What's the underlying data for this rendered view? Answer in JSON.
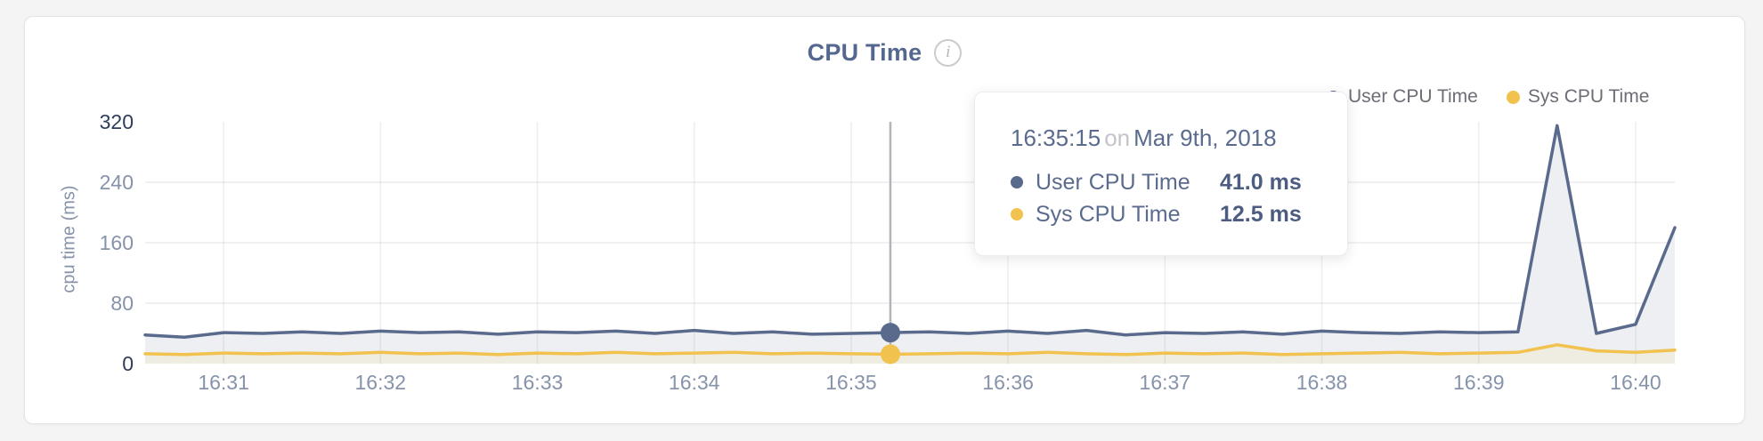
{
  "header": {
    "title": "CPU Time",
    "info_icon": "i"
  },
  "legend": {
    "items": [
      {
        "label": "User CPU Time",
        "color": "#596a8d"
      },
      {
        "label": "Sys CPU Time",
        "color": "#f1c24d"
      }
    ]
  },
  "tooltip": {
    "time": "16:35:15",
    "conjunction": "on",
    "date": "Mar 9th, 2018",
    "rows": [
      {
        "label": "User CPU Time",
        "value": "41.0 ms",
        "color": "#596a8d"
      },
      {
        "label": "Sys CPU Time",
        "value": "12.5 ms",
        "color": "#f1c24d"
      }
    ]
  },
  "chart_data": {
    "type": "area",
    "title": "CPU Time",
    "xlabel": "",
    "ylabel": "cpu time (ms)",
    "ylim": [
      0,
      320
    ],
    "date": "Mar 9th, 2018",
    "legend_position": "top-right",
    "grid": {
      "h_color": "#ececee",
      "v_color": "rgba(125,125,140,0.13)"
    },
    "axis": {
      "tick_color": "#8793aa",
      "major_tick_color": "#2c3d5d"
    },
    "x": [
      "16:30:30",
      "16:30:45",
      "16:31:00",
      "16:31:15",
      "16:31:30",
      "16:31:45",
      "16:32:00",
      "16:32:15",
      "16:32:30",
      "16:32:45",
      "16:33:00",
      "16:33:15",
      "16:33:30",
      "16:33:45",
      "16:34:00",
      "16:34:15",
      "16:34:30",
      "16:34:45",
      "16:35:00",
      "16:35:15",
      "16:35:30",
      "16:35:45",
      "16:36:00",
      "16:36:15",
      "16:36:30",
      "16:36:45",
      "16:37:00",
      "16:37:15",
      "16:37:30",
      "16:37:45",
      "16:38:00",
      "16:38:15",
      "16:38:30",
      "16:38:45",
      "16:39:00",
      "16:39:15",
      "16:39:30",
      "16:39:45",
      "16:40:00",
      "16:40:15"
    ],
    "series": [
      {
        "name": "User CPU Time",
        "color": "#596a8d",
        "fill": "#edeff3",
        "values": [
          38,
          35,
          41,
          40,
          42,
          40,
          43,
          41,
          42,
          39,
          42,
          41,
          43,
          40,
          44,
          40,
          42,
          39,
          40,
          41,
          42,
          40,
          43,
          40,
          44,
          38,
          41,
          40,
          42,
          39,
          43,
          41,
          40,
          42,
          41,
          42,
          315,
          40,
          52,
          180
        ]
      },
      {
        "name": "Sys CPU Time",
        "color": "#f1c24d",
        "fill": "#efece2",
        "values": [
          13,
          12,
          14,
          13,
          14,
          13,
          15,
          13,
          14,
          12,
          14,
          13,
          15,
          13,
          14,
          15,
          13,
          14,
          13,
          12.5,
          13,
          14,
          13,
          15,
          13,
          12,
          14,
          13,
          14,
          12,
          13,
          14,
          15,
          13,
          14,
          15,
          25,
          17,
          15,
          18
        ]
      }
    ],
    "yticks": [
      {
        "label": "0",
        "value": 0,
        "major": true,
        "grid": false
      },
      {
        "label": "80",
        "value": 80,
        "major": false,
        "grid": true
      },
      {
        "label": "160",
        "value": 160,
        "major": false,
        "grid": true
      },
      {
        "label": "240",
        "value": 240,
        "major": false,
        "grid": true
      },
      {
        "label": "320",
        "value": 320,
        "major": true,
        "grid": false
      }
    ],
    "xticks": [
      {
        "label": "16:31",
        "time": "16:31:00"
      },
      {
        "label": "16:32",
        "time": "16:32:00"
      },
      {
        "label": "16:33",
        "time": "16:33:00"
      },
      {
        "label": "16:34",
        "time": "16:34:00"
      },
      {
        "label": "16:35",
        "time": "16:35:00"
      },
      {
        "label": "16:36",
        "time": "16:36:00"
      },
      {
        "label": "16:37",
        "time": "16:37:00"
      },
      {
        "label": "16:38",
        "time": "16:38:00"
      },
      {
        "label": "16:39",
        "time": "16:39:00"
      },
      {
        "label": "16:40",
        "time": "16:40:00"
      }
    ],
    "hover": {
      "index": 19,
      "crosshair_color": "#b4b4b8"
    }
  }
}
